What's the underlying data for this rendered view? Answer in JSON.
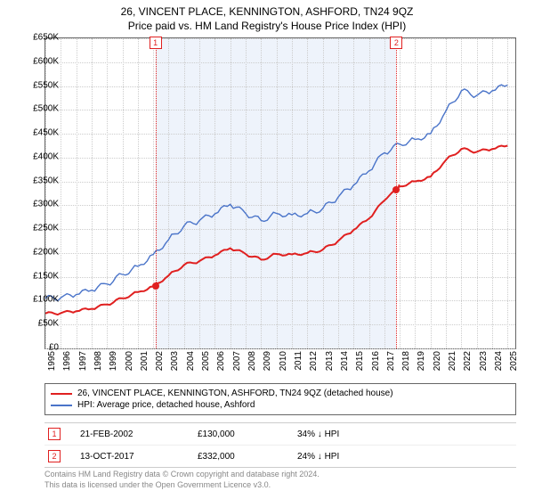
{
  "title": "26, VINCENT PLACE, KENNINGTON, ASHFORD, TN24 9QZ",
  "subtitle": "Price paid vs. HM Land Registry's House Price Index (HPI)",
  "chart": {
    "type": "line",
    "xlim": [
      1995,
      2025.5
    ],
    "ylim": [
      0,
      650
    ],
    "y_unit_prefix": "£",
    "y_unit_suffix": "K",
    "x_ticks": [
      1995,
      1996,
      1997,
      1998,
      1999,
      2000,
      2001,
      2002,
      2003,
      2004,
      2005,
      2006,
      2007,
      2008,
      2009,
      2010,
      2011,
      2012,
      2013,
      2014,
      2015,
      2016,
      2017,
      2018,
      2019,
      2020,
      2021,
      2022,
      2023,
      2024,
      2025
    ],
    "y_ticks": [
      0,
      50,
      100,
      150,
      200,
      250,
      300,
      350,
      400,
      450,
      500,
      550,
      600,
      650
    ],
    "grid_color": "#cccccc",
    "background_color": "#ffffff",
    "shade_color": "#eef3fb",
    "shade_range": [
      2002.14,
      2017.78
    ],
    "series": [
      {
        "name": "26, VINCENT PLACE, KENNINGTON, ASHFORD, TN24 9QZ (detached house)",
        "color": "#e02020",
        "width": 2,
        "points": [
          [
            1995,
            73
          ],
          [
            1996,
            74
          ],
          [
            1997,
            78
          ],
          [
            1998,
            83
          ],
          [
            1999,
            92
          ],
          [
            2000,
            105
          ],
          [
            2001,
            118
          ],
          [
            2002,
            130
          ],
          [
            2003,
            153
          ],
          [
            2004,
            175
          ],
          [
            2005,
            183
          ],
          [
            2006,
            195
          ],
          [
            2007,
            210
          ],
          [
            2008,
            198
          ],
          [
            2009,
            186
          ],
          [
            2010,
            198
          ],
          [
            2011,
            197
          ],
          [
            2012,
            200
          ],
          [
            2013,
            207
          ],
          [
            2014,
            225
          ],
          [
            2015,
            248
          ],
          [
            2016,
            272
          ],
          [
            2017,
            310
          ],
          [
            2017.78,
            332
          ],
          [
            2018,
            340
          ],
          [
            2019,
            350
          ],
          [
            2020,
            360
          ],
          [
            2021,
            395
          ],
          [
            2022,
            418
          ],
          [
            2023,
            412
          ],
          [
            2024,
            418
          ],
          [
            2025,
            425
          ]
        ]
      },
      {
        "name": "HPI: Average price, detached house, Ashford",
        "color": "#4a74c9",
        "width": 1.4,
        "points": [
          [
            1995,
            105
          ],
          [
            1996,
            106
          ],
          [
            1997,
            113
          ],
          [
            1998,
            122
          ],
          [
            1999,
            135
          ],
          [
            2000,
            155
          ],
          [
            2001,
            172
          ],
          [
            2002,
            197
          ],
          [
            2003,
            228
          ],
          [
            2004,
            257
          ],
          [
            2005,
            268
          ],
          [
            2006,
            282
          ],
          [
            2007,
            302
          ],
          [
            2008,
            283
          ],
          [
            2009,
            268
          ],
          [
            2010,
            283
          ],
          [
            2011,
            280
          ],
          [
            2012,
            283
          ],
          [
            2013,
            293
          ],
          [
            2014,
            317
          ],
          [
            2015,
            342
          ],
          [
            2016,
            372
          ],
          [
            2017,
            410
          ],
          [
            2018,
            428
          ],
          [
            2019,
            438
          ],
          [
            2020,
            450
          ],
          [
            2021,
            498
          ],
          [
            2022,
            540
          ],
          [
            2023,
            530
          ],
          [
            2024,
            540
          ],
          [
            2025,
            552
          ]
        ]
      }
    ],
    "sale_points": [
      {
        "x": 2002.14,
        "y": 130
      },
      {
        "x": 2017.78,
        "y": 332
      }
    ],
    "event_lines": [
      2002.14,
      2017.78
    ]
  },
  "legend": {
    "items": [
      {
        "label": "26, VINCENT PLACE, KENNINGTON, ASHFORD, TN24 9QZ (detached house)",
        "color": "#e02020"
      },
      {
        "label": "HPI: Average price, detached house, Ashford",
        "color": "#4a74c9"
      }
    ]
  },
  "events": [
    {
      "n": "1",
      "date": "21-FEB-2002",
      "price": "£130,000",
      "delta": "34% ↓ HPI"
    },
    {
      "n": "2",
      "date": "13-OCT-2017",
      "price": "£332,000",
      "delta": "24% ↓ HPI"
    }
  ],
  "footer": {
    "line1": "Contains HM Land Registry data © Crown copyright and database right 2024.",
    "line2": "This data is licensed under the Open Government Licence v3.0."
  }
}
